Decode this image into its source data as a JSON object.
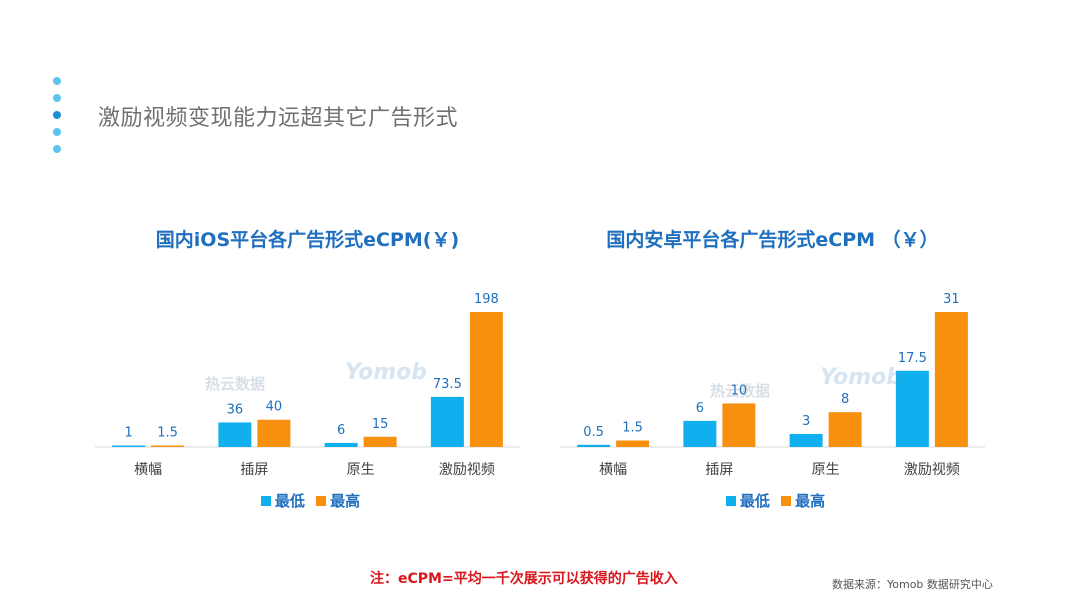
{
  "slide": {
    "title": "激励视频变现能力远超其它广告形式",
    "note": "注：eCPM=平均一千次展示可以获得的广告收入",
    "source": "数据来源：Yomob 数据研究中心",
    "watermark_cn": "热云数据",
    "watermark_logo": "Yomob"
  },
  "colors": {
    "low": "#10b0ef",
    "high": "#f7900f",
    "title": "#1f6fbf",
    "note": "#d9171d"
  },
  "legend": {
    "low": "最低",
    "high": "最高"
  },
  "chart_data": [
    {
      "type": "bar",
      "title": "国内iOS平台各广告形式eCPM(￥)",
      "categories": [
        "横幅",
        "插屏",
        "原生",
        "激励视频"
      ],
      "series": [
        {
          "name": "最低",
          "values": [
            1,
            36,
            6,
            73.5
          ]
        },
        {
          "name": "最高",
          "values": [
            1.5,
            40,
            15,
            198
          ]
        }
      ],
      "ylim": [
        0,
        198
      ]
    },
    {
      "type": "bar",
      "title": "国内安卓平台各广告形式eCPM （￥）",
      "categories": [
        "横幅",
        "插屏",
        "原生",
        "激励视频"
      ],
      "series": [
        {
          "name": "最低",
          "values": [
            0.5,
            6,
            3,
            17.5
          ]
        },
        {
          "name": "最高",
          "values": [
            1.5,
            10,
            8,
            31
          ]
        }
      ],
      "ylim": [
        0,
        31
      ]
    }
  ]
}
